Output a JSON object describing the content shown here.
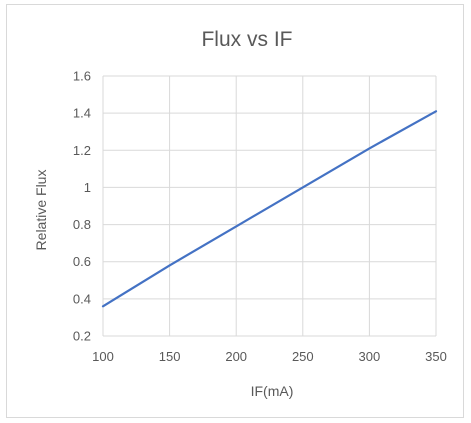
{
  "chart_data": {
    "type": "line",
    "title": "Flux  vs IF",
    "xlabel": "IF(mA)",
    "ylabel": "Relative Flux",
    "xlim": [
      100,
      350
    ],
    "ylim": [
      0.2,
      1.6
    ],
    "x_ticks": [
      100,
      150,
      200,
      250,
      300,
      350
    ],
    "y_ticks": [
      0.2,
      0.4,
      0.6,
      0.8,
      1,
      1.2,
      1.4,
      1.6
    ],
    "x_tick_labels": [
      "100",
      "150",
      "200",
      "250",
      "300",
      "350"
    ],
    "y_tick_labels": [
      "0.2",
      "0.4",
      "0.6",
      "0.8",
      "1",
      "1.2",
      "1.4",
      "1.6"
    ],
    "grid": true,
    "legend": "none",
    "series": [
      {
        "color": "#4472c4",
        "x": [
          100,
          150,
          200,
          250,
          300,
          350
        ],
        "y": [
          0.36,
          0.58,
          0.79,
          1.0,
          1.21,
          1.41
        ]
      }
    ]
  }
}
